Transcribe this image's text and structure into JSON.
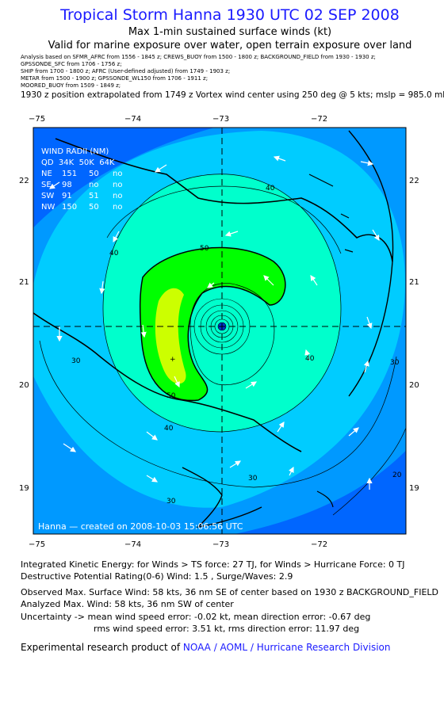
{
  "header": {
    "title": "Tropical Storm Hanna 1930 UTC 02 SEP 2008",
    "subtitle1": "Max 1-min sustained surface winds (kt)",
    "subtitle2": "Valid for marine exposure over water, open terrain exposure over land"
  },
  "sources": {
    "line1": "Analysis based on  SFMR_AFRC from 1556 - 1845 z;  CREWS_BUOY from 1500 - 1800 z;  BACKGROUND_FIELD from 1930 - 1930 z;",
    "line2": "GPSSONDE_SFC from 1706 - 1756 z;",
    "line3": "SHIP from 1700 - 1800 z;  AFRC (User-defined adjusted) from 1749 - 1903 z;",
    "line4": "METAR from 1500 - 1900 z;  GPSSONDE_WL150 from 1706 - 1911 z;",
    "line5": "MOORED_BUOY from 1509 - 1849 z;"
  },
  "extrapolation": "1930 z position extrapolated from 1749 z Vortex wind center using 250 deg @ 5 kts; mslp = 985.0 mb",
  "map": {
    "lon_ticks": [
      "−75",
      "−74",
      "−73",
      "−72"
    ],
    "lat_ticks": [
      "22",
      "21",
      "20",
      "19"
    ],
    "wind_radii": {
      "header": "WIND RADII (NM)",
      "columns": "QD  34K  50K  64K",
      "rows": [
        {
          "qd": "NE",
          "k34": "151",
          "k50": "50",
          "k64": "no"
        },
        {
          "qd": "SE",
          "k34": "98",
          "k50": "no",
          "k64": "no"
        },
        {
          "qd": "SW",
          "k34": "91",
          "k50": "51",
          "k64": "no"
        },
        {
          "qd": "NW",
          "k34": "150",
          "k50": "50",
          "k64": "no"
        }
      ]
    },
    "contour_labels": {
      "c40": "40",
      "c50": "50",
      "c30": "30",
      "c20": "20"
    },
    "stamp": "Hanna — created on 2008-10-03 15:06:56 UTC",
    "colors": {
      "ocean": "#0066ff",
      "band20": "#0099ff",
      "band30": "#00ccff",
      "band40": "#00ffcc",
      "band50": "#00ff00",
      "band55": "#ccff00",
      "coast": "#000000"
    }
  },
  "stats": {
    "ike": "Integrated Kinetic Energy:  for Winds > TS force: 27 TJ,  for Winds > Hurricane Force: 0 TJ",
    "dpr": "Destructive Potential Rating(0-6)   Wind: 1.5 , Surge/Waves: 2.9",
    "obs_max": "Observed Max. Surface Wind: 58 kts, 36 nm SE of center based on 1930 z BACKGROUND_FIELD",
    "ana_max": "Analyzed Max. Wind: 58 kts, 36 nm SW of center",
    "unc1": "Uncertainty -> mean wind speed error:  -0.02 kt,   mean direction error:  -0.67 deg",
    "unc2": "rms wind speed error: 3.51 kt,   rms direction error: 11.97 deg",
    "credit_prefix": "Experimental research product of ",
    "credit_link": "NOAA / AOML / Hurricane Research Division"
  }
}
